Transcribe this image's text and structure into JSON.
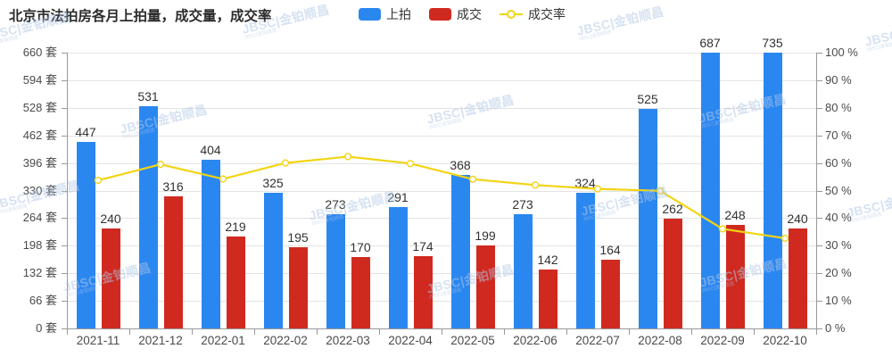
{
  "title": "北京市法拍房各月上拍量，成交量，成交率",
  "legend": [
    {
      "label": "上拍",
      "type": "bar",
      "color": "#2B87F0"
    },
    {
      "label": "成交",
      "type": "bar",
      "color": "#D02A20"
    },
    {
      "label": "成交率",
      "type": "line",
      "color": "#F2D413"
    }
  ],
  "watermark": {
    "text": "JBSC|金铂顺昌"
  },
  "chart_data": {
    "type": "bar+line combo",
    "categories": [
      "2021-11",
      "2021-12",
      "2022-01",
      "2022-02",
      "2022-03",
      "2022-04",
      "2022-05",
      "2022-06",
      "2022-07",
      "2022-08",
      "2022-09",
      "2022-10"
    ],
    "series": [
      {
        "name": "上拍",
        "type": "bar",
        "axis": "left",
        "color": "#2B87F0",
        "values": [
          447,
          531,
          404,
          325,
          273,
          291,
          368,
          273,
          324,
          525,
          687,
          735
        ]
      },
      {
        "name": "成交",
        "type": "bar",
        "axis": "left",
        "color": "#D02A20",
        "values": [
          240,
          316,
          219,
          195,
          170,
          174,
          199,
          142,
          164,
          262,
          248,
          240
        ]
      },
      {
        "name": "成交率",
        "type": "line",
        "axis": "right",
        "color": "#F2D413",
        "values": [
          53.7,
          59.5,
          54.2,
          60.0,
          62.3,
          59.8,
          54.1,
          52.0,
          50.6,
          49.9,
          36.1,
          32.7
        ]
      }
    ],
    "left_axis": {
      "min": 0,
      "max": 660,
      "step": 66,
      "unit": "套"
    },
    "right_axis": {
      "min": 0,
      "max": 100,
      "step": 10,
      "unit": "%"
    },
    "grid": true,
    "legend_position": "top-center",
    "title": "北京市法拍房各月上拍量，成交量，成交率"
  }
}
